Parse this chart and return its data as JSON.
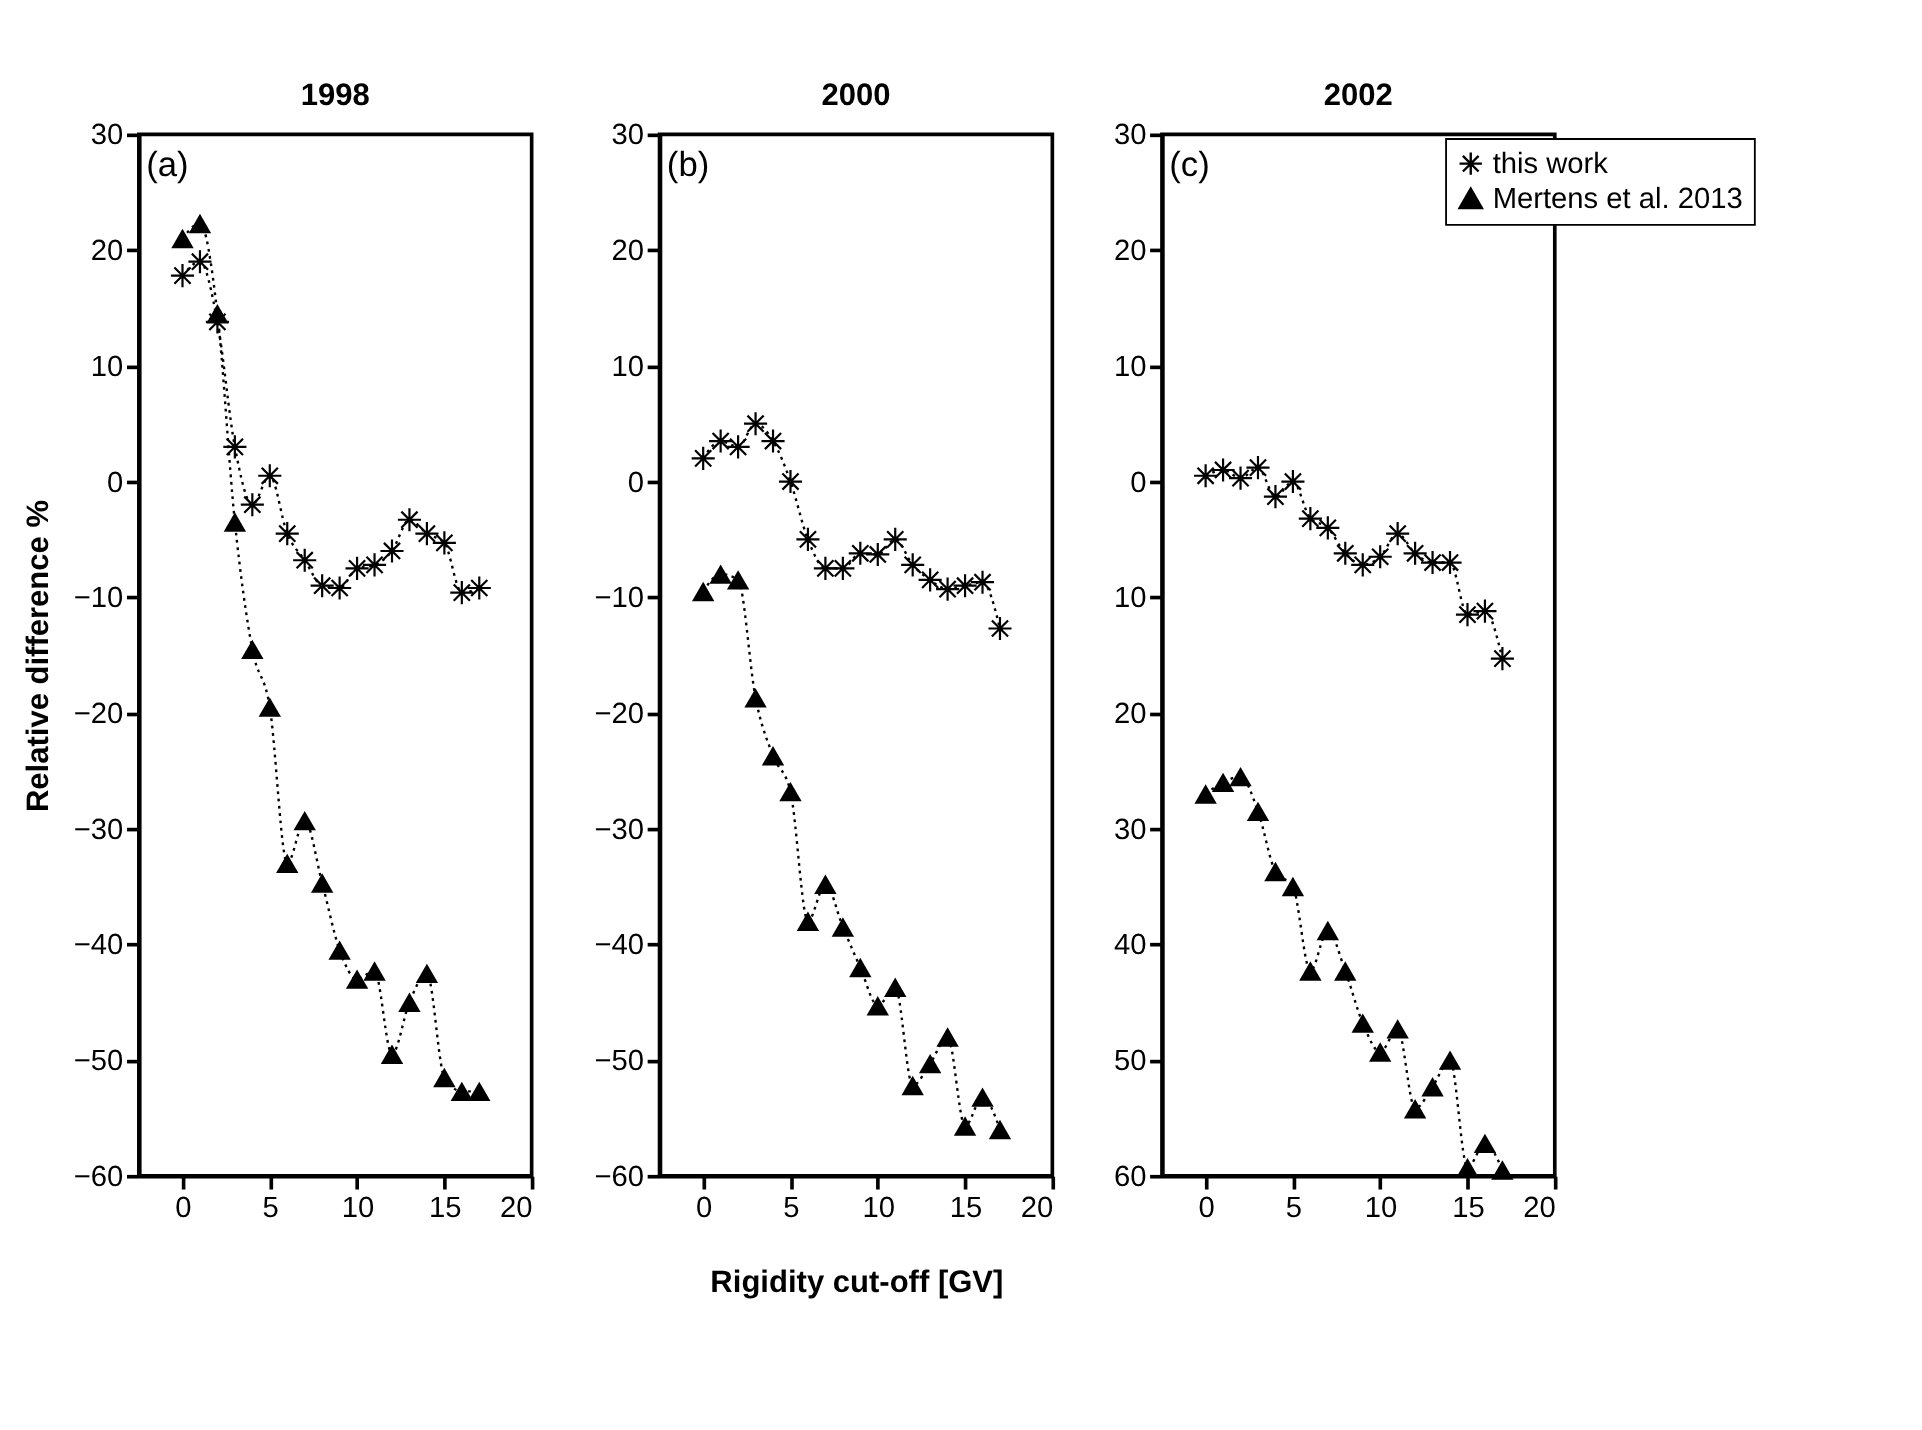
{
  "chart_data": [
    {
      "type": "line",
      "title": "1998",
      "ylabel": "Relative difference %",
      "annotations": [
        "(a)"
      ],
      "x": [
        0,
        1,
        2,
        3,
        4,
        5,
        6,
        7,
        8,
        9,
        10,
        11,
        12,
        13,
        14,
        15,
        16,
        17
      ],
      "xlim": [
        -2.5,
        20
      ],
      "xticks": [
        0,
        5,
        10,
        15,
        20
      ],
      "ylim": [
        -60,
        30
      ],
      "yticks": [
        -60,
        -50,
        -40,
        -30,
        -20,
        -10,
        0,
        10,
        20,
        30
      ],
      "grid": false,
      "legend": false,
      "line_style": "dotted",
      "series": [
        {
          "color": "#000000",
          "marker": "cross",
          "values": [
            17.8,
            19,
            13.8,
            3,
            -2,
            0.5,
            -4.5,
            -6.8,
            -9,
            -9.2,
            -7.5,
            -7.2,
            -6,
            -3.3,
            -4.5,
            -5.3,
            -9.6,
            -9.2
          ]
        },
        {
          "color": "#000000",
          "marker": "triangle",
          "values": [
            21,
            22.3,
            14.5,
            -3.5,
            -14.5,
            -19.5,
            -33,
            -29.3,
            -34.7,
            -40.5,
            -43,
            -42.3,
            -49.5,
            -45,
            -42.5,
            -51.5,
            -52.7,
            -52.7
          ]
        }
      ]
    },
    {
      "type": "line",
      "title": "2000",
      "xlabel": "Rigidity cut-off  [GV]",
      "annotations": [
        "(b)"
      ],
      "x": [
        0,
        1,
        2,
        3,
        4,
        5,
        6,
        7,
        8,
        9,
        10,
        11,
        12,
        13,
        14,
        15,
        16,
        17
      ],
      "xlim": [
        -2.5,
        20
      ],
      "xticks": [
        0,
        5,
        10,
        15,
        20
      ],
      "ylim": [
        -60,
        30
      ],
      "yticks": [
        -60,
        -50,
        -40,
        -30,
        -20,
        -10,
        0,
        10,
        20,
        30
      ],
      "grid": false,
      "legend": false,
      "line_style": "dotted",
      "series": [
        {
          "color": "#000000",
          "marker": "cross",
          "values": [
            2,
            3.5,
            3,
            5,
            3.5,
            0,
            -5,
            -7.5,
            -7.5,
            -6.2,
            -6.3,
            -5,
            -7.2,
            -8.5,
            -9.3,
            -9,
            -8.7,
            -12.7
          ]
        },
        {
          "color": "#000000",
          "marker": "triangle",
          "values": [
            -9.5,
            -8,
            -8.5,
            -18.7,
            -23.7,
            -26.8,
            -38,
            -34.8,
            -38.5,
            -42,
            -45.3,
            -43.7,
            -52.2,
            -50.3,
            -48,
            -55.7,
            -53.2,
            -56
          ]
        }
      ]
    },
    {
      "type": "line",
      "title": "2002",
      "annotations": [
        "(c)"
      ],
      "x": [
        0,
        1,
        2,
        3,
        4,
        5,
        6,
        7,
        8,
        9,
        10,
        11,
        12,
        13,
        14,
        15,
        16,
        17
      ],
      "xlim": [
        -2.5,
        20
      ],
      "xticks": [
        0,
        5,
        10,
        15,
        20
      ],
      "ylim": [
        -60,
        30
      ],
      "yticks": [
        {
          "value": -60,
          "label": "60"
        },
        {
          "value": -50,
          "label": "50"
        },
        {
          "value": -40,
          "label": "40"
        },
        {
          "value": -30,
          "label": "30"
        },
        {
          "value": -20,
          "label": "20"
        },
        {
          "value": -10,
          "label": "10"
        },
        0,
        10,
        20,
        30
      ],
      "grid": false,
      "legend": "top right",
      "line_style": "dotted",
      "series": [
        {
          "name": "this work",
          "color": "#000000",
          "marker": "cross",
          "values": [
            0.5,
            1,
            0.3,
            1.2,
            -1.3,
            0,
            -3.2,
            -4,
            -6.2,
            -7.2,
            -6.5,
            -4.5,
            -6.2,
            -7,
            -7,
            -11.5,
            -11.2,
            -15.3
          ]
        },
        {
          "name": "Mertens et al. 2013",
          "color": "#000000",
          "marker": "triangle",
          "values": [
            -27,
            -26,
            -25.5,
            -28.5,
            -33.7,
            -35,
            -42.3,
            -38.8,
            -42.3,
            -46.8,
            -49.3,
            -47.3,
            -54.2,
            -52.3,
            -50,
            -59.3,
            -57.2,
            -59.5
          ]
        }
      ]
    }
  ]
}
